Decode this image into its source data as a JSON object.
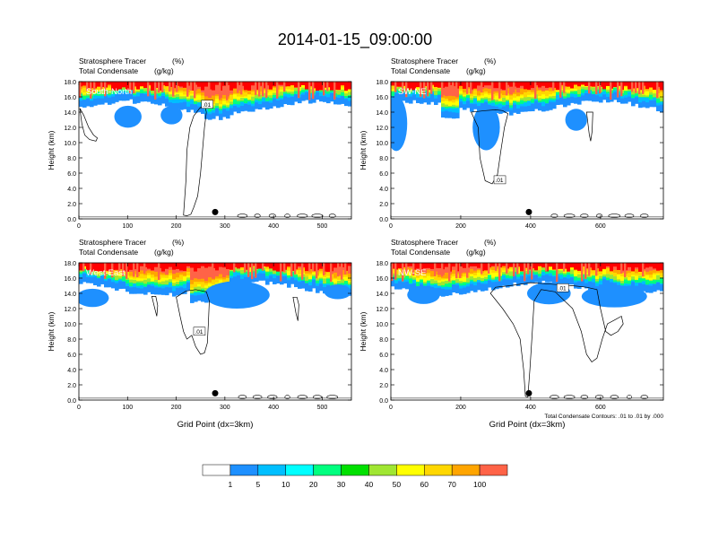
{
  "main_title": "2014-01-15_09:00:00",
  "colors": {
    "levels": [
      "#ffffff",
      "#1e90ff",
      "#00bfff",
      "#00ffff",
      "#00ff7f",
      "#00e000",
      "#a0e632",
      "#ffff00",
      "#ffd700",
      "#ffa500",
      "#ff6347",
      "#ff0000"
    ],
    "contour": "#000000",
    "axis": "#000000"
  },
  "chart_data": [
    {
      "type": "heatmap",
      "title": "South-North",
      "subtitle_left_1": "Stratosphere Tracer",
      "subtitle_units_1": "(%)",
      "subtitle_left_2": "Total Condensate",
      "subtitle_units_2": "(g/kg)",
      "ylabel": "Height (km)",
      "xlabel": "",
      "ylim": [
        0,
        18
      ],
      "xlim": [
        0,
        560
      ],
      "yticks": [
        "0.0",
        "2.0",
        "4.0",
        "6.0",
        "8.0",
        "10.0",
        "12.0",
        "14.0",
        "16.0",
        "18.0"
      ],
      "xticks": [
        "0",
        "100",
        "200",
        "300",
        "400",
        "500"
      ],
      "xtick_values": [
        0,
        100,
        200,
        300,
        400,
        500
      ],
      "contour_label": ".01",
      "marker_x": 280
    },
    {
      "type": "heatmap",
      "title": "SW-NE",
      "subtitle_left_1": "Stratosphere Tracer",
      "subtitle_units_1": "(%)",
      "subtitle_left_2": "Total Condensate",
      "subtitle_units_2": "(g/kg)",
      "ylabel": "Height (km)",
      "xlabel": "",
      "ylim": [
        0,
        18
      ],
      "xlim": [
        0,
        780
      ],
      "yticks": [
        "0.0",
        "2.0",
        "4.0",
        "6.0",
        "8.0",
        "10.0",
        "12.0",
        "14.0",
        "16.0",
        "18.0"
      ],
      "xticks": [
        "0",
        "200",
        "400",
        "600"
      ],
      "xtick_values": [
        0,
        200,
        400,
        600
      ],
      "contour_label": ".01",
      "marker_x": 395
    },
    {
      "type": "heatmap",
      "title": "West-East",
      "subtitle_left_1": "Stratosphere Tracer",
      "subtitle_units_1": "(%)",
      "subtitle_left_2": "Total Condensate",
      "subtitle_units_2": "(g/kg)",
      "ylabel": "Height (km)",
      "xlabel": "Grid Point (dx=3km)",
      "ylim": [
        0,
        18
      ],
      "xlim": [
        0,
        560
      ],
      "yticks": [
        "0.0",
        "2.0",
        "4.0",
        "6.0",
        "8.0",
        "10.0",
        "12.0",
        "14.0",
        "16.0",
        "18.0"
      ],
      "xticks": [
        "0",
        "100",
        "200",
        "300",
        "400",
        "500"
      ],
      "xtick_values": [
        0,
        100,
        200,
        300,
        400,
        500
      ],
      "contour_label": ".01",
      "marker_x": 280
    },
    {
      "type": "heatmap",
      "title": "NW-SE",
      "subtitle_left_1": "Stratosphere Tracer",
      "subtitle_units_1": "(%)",
      "subtitle_left_2": "Total Condensate",
      "subtitle_units_2": "(g/kg)",
      "ylabel": "Height (km)",
      "xlabel": "Grid Point (dx=3km)",
      "ylim": [
        0,
        18
      ],
      "xlim": [
        0,
        780
      ],
      "yticks": [
        "0.0",
        "2.0",
        "4.0",
        "6.0",
        "8.0",
        "10.0",
        "12.0",
        "14.0",
        "16.0",
        "18.0"
      ],
      "xticks": [
        "0",
        "200",
        "400",
        "600"
      ],
      "xtick_values": [
        0,
        200,
        400,
        600
      ],
      "contour_label": ".01",
      "marker_x": 395,
      "footnote": "Total Condensate Contours: .01 to .01 by .000"
    }
  ],
  "colorbar": {
    "labels": [
      "1",
      "5",
      "10",
      "20",
      "30",
      "40",
      "50",
      "60",
      "70",
      "100"
    ]
  }
}
